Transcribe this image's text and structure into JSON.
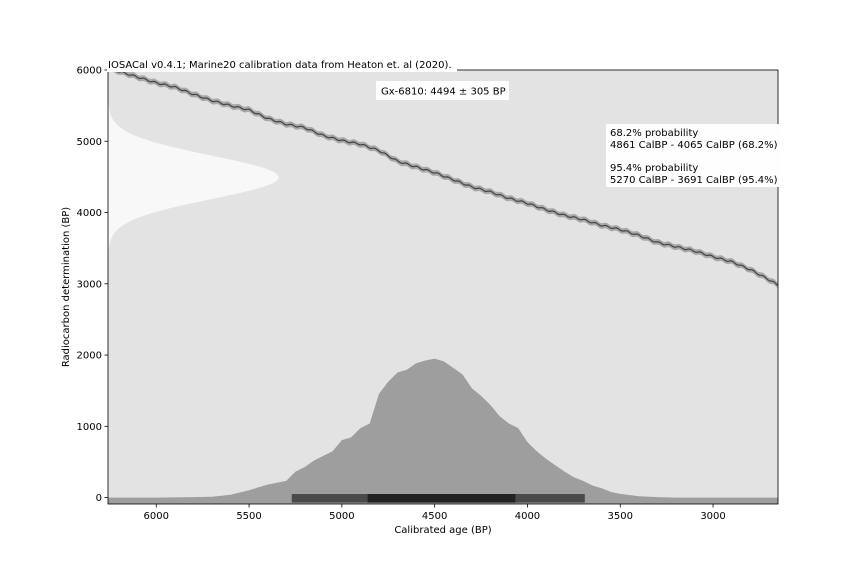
{
  "chart_data": {
    "type": "area",
    "title": "IOSACal v0.4.1;  Marine20 calibration data from Heaton et. al (2020).",
    "sample_label": "Gx-6810: 4494 ± 305 BP",
    "xlabel": "Calibrated age (BP)",
    "ylabel": "Radiocarbon determination (BP)",
    "xlim": [
      6260,
      2650
    ],
    "ylim": [
      -90,
      6000
    ],
    "xticks": [
      6000,
      5500,
      5000,
      4500,
      4000,
      3500,
      3000
    ],
    "yticks": [
      0,
      1000,
      2000,
      3000,
      4000,
      5000,
      6000
    ],
    "radiocarbon_date": {
      "mean": 4494,
      "sigma": 305
    },
    "probability_text": {
      "p68_heading": "68.2% probability",
      "p68_range": "4861 CalBP - 4065 CalBP (68.2%)",
      "p95_heading": "95.4% probability",
      "p95_range": "5270 CalBP - 3691 CalBP (95.4%)"
    },
    "intervals": {
      "p68": [
        4861,
        4065
      ],
      "p95": [
        5270,
        3691
      ]
    },
    "calibration_curve": {
      "x": [
        6260,
        6200,
        6100,
        6000,
        5900,
        5800,
        5700,
        5600,
        5500,
        5400,
        5300,
        5200,
        5100,
        5000,
        4900,
        4800,
        4700,
        4600,
        4500,
        4400,
        4300,
        4200,
        4100,
        4000,
        3900,
        3800,
        3700,
        3600,
        3500,
        3400,
        3300,
        3200,
        3100,
        3000,
        2900,
        2800,
        2700,
        2650
      ],
      "y": [
        6020,
        5980,
        5900,
        5820,
        5760,
        5660,
        5570,
        5500,
        5440,
        5320,
        5240,
        5190,
        5080,
        5010,
        4960,
        4870,
        4720,
        4640,
        4560,
        4460,
        4360,
        4290,
        4200,
        4130,
        4040,
        3960,
        3900,
        3820,
        3760,
        3680,
        3580,
        3520,
        3460,
        3380,
        3310,
        3200,
        3060,
        2980
      ],
      "band": 40
    },
    "calibrated_distribution": {
      "x": [
        6260,
        6000,
        5800,
        5700,
        5600,
        5500,
        5450,
        5400,
        5300,
        5250,
        5200,
        5150,
        5100,
        5050,
        5000,
        4950,
        4900,
        4850,
        4800,
        4750,
        4700,
        4650,
        4600,
        4550,
        4500,
        4450,
        4400,
        4350,
        4300,
        4250,
        4200,
        4150,
        4100,
        4050,
        4000,
        3950,
        3900,
        3850,
        3800,
        3750,
        3700,
        3650,
        3600,
        3550,
        3500,
        3400,
        3300,
        3200,
        3000,
        2650
      ],
      "y": [
        0,
        0,
        0.005,
        0.01,
        0.03,
        0.08,
        0.11,
        0.14,
        0.18,
        0.28,
        0.33,
        0.4,
        0.45,
        0.5,
        0.62,
        0.65,
        0.75,
        0.8,
        1.12,
        1.25,
        1.35,
        1.38,
        1.45,
        1.48,
        1.5,
        1.47,
        1.4,
        1.33,
        1.18,
        1.1,
        1.0,
        0.88,
        0.8,
        0.75,
        0.6,
        0.5,
        0.42,
        0.35,
        0.28,
        0.22,
        0.18,
        0.13,
        0.1,
        0.06,
        0.04,
        0.015,
        0.005,
        0,
        0,
        0
      ],
      "peak_height_bp": 1950
    },
    "colors": {
      "plot_background": "#e3e3e3",
      "calibration_curve": "#444444",
      "curve_band": "#a8a8a8",
      "radiocarbon_distribution": "#f8f8f8",
      "calibrated_distribution": "#9e9e9e",
      "interval_95": "#4a4a4a",
      "interval_68": "#222222"
    }
  }
}
